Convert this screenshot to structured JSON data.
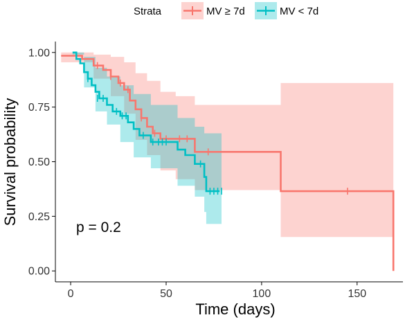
{
  "chart_data": {
    "type": "line",
    "subtype": "kaplan-meier",
    "xlabel": "Time (days)",
    "ylabel": "Survival probability",
    "xlim": [
      -8,
      174
    ],
    "ylim": [
      -0.05,
      1.05
    ],
    "xticks": [
      0,
      50,
      100,
      150
    ],
    "yticks": [
      0.0,
      0.25,
      0.5,
      0.75,
      1.0
    ],
    "ytick_labels": [
      "0.00",
      "0.25",
      "0.50",
      "0.75",
      "1.00"
    ],
    "grid": false,
    "legend": {
      "title": "Strata",
      "placement": "top"
    },
    "annotation": "p = 0.2",
    "series": [
      {
        "name": "MV ≥ 7d",
        "color": "#F8766D",
        "band_color": "#F8766D",
        "steps": [
          [
            -5,
            0.985
          ],
          [
            2,
            0.985
          ],
          [
            6,
            0.97
          ],
          [
            12,
            0.94
          ],
          [
            17,
            0.92
          ],
          [
            21,
            0.89
          ],
          [
            25,
            0.86
          ],
          [
            28,
            0.83
          ],
          [
            31,
            0.78
          ],
          [
            34,
            0.74
          ],
          [
            37,
            0.7
          ],
          [
            40,
            0.66
          ],
          [
            43,
            0.63
          ],
          [
            47,
            0.605
          ],
          [
            65,
            0.545
          ],
          [
            110,
            0.365
          ],
          [
            169,
            0.0
          ]
        ],
        "end_x": 169,
        "upper": [
          [
            -5,
            1.0
          ],
          [
            2,
            1.0
          ],
          [
            12,
            0.99
          ],
          [
            21,
            0.98
          ],
          [
            28,
            0.955
          ],
          [
            34,
            0.905
          ],
          [
            40,
            0.87
          ],
          [
            47,
            0.82
          ],
          [
            55,
            0.8
          ],
          [
            65,
            0.76
          ],
          [
            110,
            0.86
          ],
          [
            169,
            0.86
          ]
        ],
        "lower": [
          [
            -5,
            0.955
          ],
          [
            2,
            0.955
          ],
          [
            12,
            0.88
          ],
          [
            21,
            0.8
          ],
          [
            28,
            0.72
          ],
          [
            34,
            0.6
          ],
          [
            40,
            0.53
          ],
          [
            47,
            0.46
          ],
          [
            55,
            0.42
          ],
          [
            65,
            0.37
          ],
          [
            110,
            0.155
          ],
          [
            169,
            0.155
          ]
        ],
        "censors": [
          [
            14,
            0.94
          ],
          [
            21,
            0.89
          ],
          [
            26,
            0.86
          ],
          [
            30,
            0.83
          ],
          [
            37,
            0.7
          ],
          [
            44,
            0.63
          ],
          [
            50,
            0.605
          ],
          [
            57,
            0.605
          ],
          [
            61,
            0.605
          ],
          [
            72,
            0.545
          ],
          [
            145,
            0.365
          ]
        ]
      },
      {
        "name": "MV < 7d",
        "color": "#00BFC4",
        "band_color": "#00BFC4",
        "steps": [
          [
            1,
            1.0
          ],
          [
            3,
            0.97
          ],
          [
            5,
            0.95
          ],
          [
            7,
            0.91
          ],
          [
            9,
            0.88
          ],
          [
            11,
            0.85
          ],
          [
            13,
            0.82
          ],
          [
            15,
            0.79
          ],
          [
            19,
            0.76
          ],
          [
            22,
            0.73
          ],
          [
            26,
            0.71
          ],
          [
            30,
            0.68
          ],
          [
            33,
            0.65
          ],
          [
            36,
            0.62
          ],
          [
            42,
            0.59
          ],
          [
            56,
            0.555
          ],
          [
            60,
            0.53
          ],
          [
            65,
            0.49
          ],
          [
            70,
            0.43
          ],
          [
            71,
            0.365
          ],
          [
            78,
            0.365
          ]
        ],
        "end_x": 79,
        "upper": [
          [
            1,
            1.0
          ],
          [
            7,
            0.98
          ],
          [
            13,
            0.93
          ],
          [
            19,
            0.89
          ],
          [
            26,
            0.85
          ],
          [
            33,
            0.81
          ],
          [
            42,
            0.76
          ],
          [
            56,
            0.7
          ],
          [
            65,
            0.66
          ],
          [
            70,
            0.63
          ],
          [
            79,
            0.63
          ]
        ],
        "lower": [
          [
            1,
            0.99
          ],
          [
            7,
            0.84
          ],
          [
            13,
            0.73
          ],
          [
            19,
            0.67
          ],
          [
            26,
            0.59
          ],
          [
            33,
            0.52
          ],
          [
            42,
            0.47
          ],
          [
            56,
            0.39
          ],
          [
            65,
            0.34
          ],
          [
            70,
            0.27
          ],
          [
            71,
            0.215
          ],
          [
            79,
            0.215
          ]
        ],
        "censors": [
          [
            9,
            0.88
          ],
          [
            14,
            0.79
          ],
          [
            17,
            0.79
          ],
          [
            24,
            0.73
          ],
          [
            27,
            0.71
          ],
          [
            29,
            0.71
          ],
          [
            38,
            0.62
          ],
          [
            43,
            0.59
          ],
          [
            46,
            0.59
          ],
          [
            48,
            0.59
          ],
          [
            50,
            0.59
          ],
          [
            68,
            0.49
          ],
          [
            73,
            0.365
          ],
          [
            75,
            0.365
          ],
          [
            77,
            0.365
          ],
          [
            79,
            0.365
          ]
        ]
      }
    ]
  }
}
